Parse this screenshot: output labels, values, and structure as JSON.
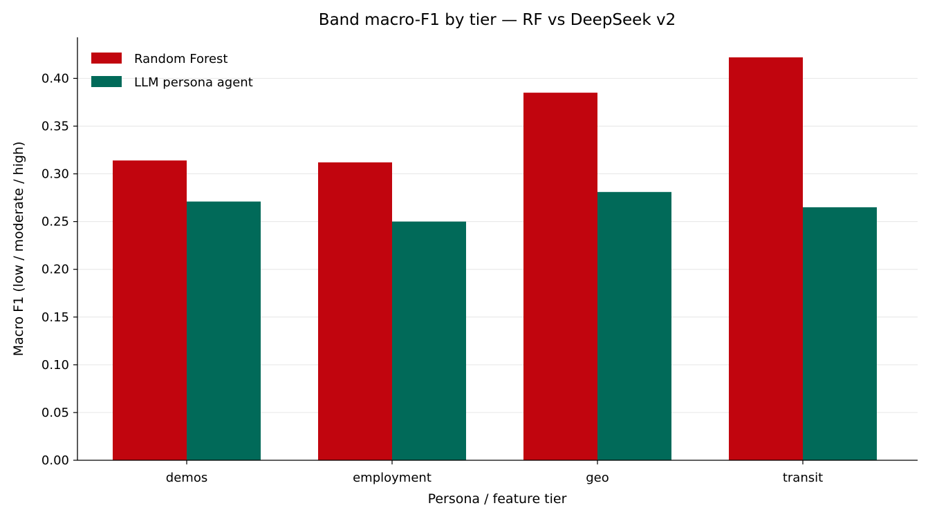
{
  "chart_data": {
    "type": "bar",
    "title": "Band macro-F1 by tier — RF vs DeepSeek v2",
    "xlabel": "Persona / feature tier",
    "ylabel": "Macro F1 (low / moderate / high)",
    "categories": [
      "demos",
      "employment",
      "geo",
      "transit"
    ],
    "series": [
      {
        "name": "Random Forest",
        "color": "#c1050e",
        "values": [
          0.314,
          0.312,
          0.385,
          0.422
        ]
      },
      {
        "name": "LLM persona agent",
        "color": "#016a59",
        "values": [
          0.271,
          0.25,
          0.281,
          0.265
        ]
      }
    ],
    "ylim": [
      0,
      0.443
    ],
    "yticks": [
      "0.00",
      "0.05",
      "0.10",
      "0.15",
      "0.20",
      "0.25",
      "0.30",
      "0.35",
      "0.40"
    ],
    "grid": "horizontal",
    "legend_position": "top-left"
  }
}
